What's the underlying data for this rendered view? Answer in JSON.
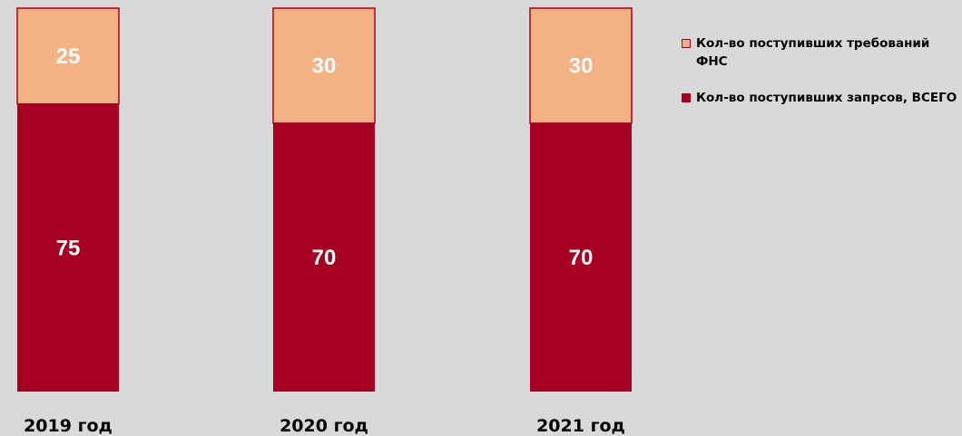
{
  "chart_data": {
    "type": "bar",
    "stacked": true,
    "categories": [
      "2019 год",
      "2020 год",
      "2021 год"
    ],
    "series": [
      {
        "name": "Кол-во поступивших запрсов, ВСЕГО",
        "values": [
          75,
          70,
          70
        ],
        "color": "#a50021"
      },
      {
        "name": "Кол-во поступивших требований ФНС",
        "values": [
          25,
          30,
          30
        ],
        "color": "#f4b183"
      }
    ],
    "ylim": [
      0,
      100
    ],
    "grid": false,
    "legend_position": "right"
  },
  "legend": [
    {
      "label": "Кол-во поступивших требований ФНС",
      "color": "#f4b183",
      "border": "#a50021"
    },
    {
      "label": "Кол-во поступивших запрсов, ВСЕГО",
      "color": "#a50021",
      "border": "#a50021"
    }
  ]
}
